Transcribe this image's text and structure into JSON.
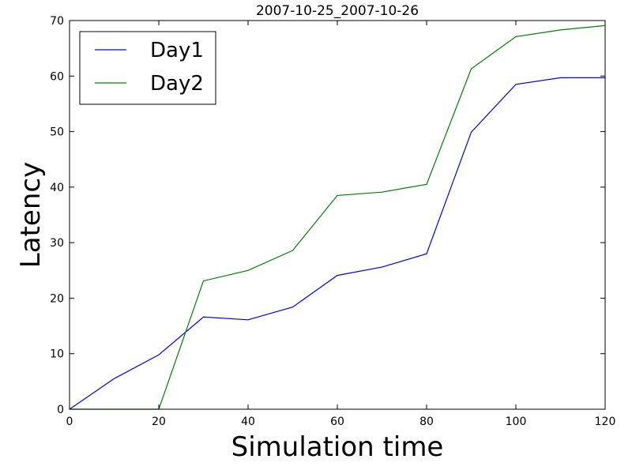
{
  "chart_data": {
    "type": "line",
    "title": "2007-10-25_2007-10-26",
    "xlabel": "Simulation time",
    "ylabel": "Latency",
    "xlim": [
      0,
      120
    ],
    "ylim": [
      0,
      70
    ],
    "xticks": [
      0,
      20,
      40,
      60,
      80,
      100,
      120
    ],
    "yticks": [
      0,
      10,
      20,
      30,
      40,
      50,
      60,
      70
    ],
    "grid": false,
    "legend_position": "top-left",
    "series": [
      {
        "name": "Day1",
        "color": "#0000ff",
        "x": [
          0,
          10,
          20,
          30,
          40,
          50,
          60,
          70,
          80,
          90,
          100,
          110,
          120
        ],
        "y": [
          0,
          5.5,
          9.8,
          16.6,
          16.1,
          18.4,
          24.1,
          25.6,
          28.0,
          49.9,
          58.5,
          59.7,
          59.7
        ]
      },
      {
        "name": "Day2",
        "color": "#008000",
        "x": [
          0,
          10,
          20,
          30,
          40,
          50,
          60,
          70,
          80,
          90,
          100,
          110,
          120
        ],
        "y": [
          0,
          0,
          0,
          23.1,
          25.0,
          28.6,
          38.5,
          39.1,
          40.5,
          61.3,
          67.1,
          68.3,
          69.1
        ]
      }
    ]
  }
}
